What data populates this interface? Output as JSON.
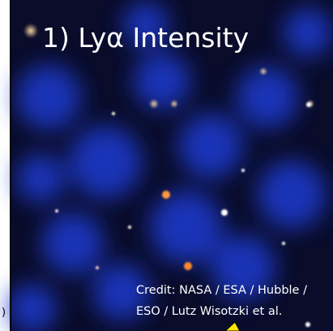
{
  "title": "1) Lyα Intensity",
  "credit": [
    "Credit: NASA / ESA / Hubble /",
    "ESO / Lutz Wisotzki et al."
  ],
  "edge_text": ")"
}
